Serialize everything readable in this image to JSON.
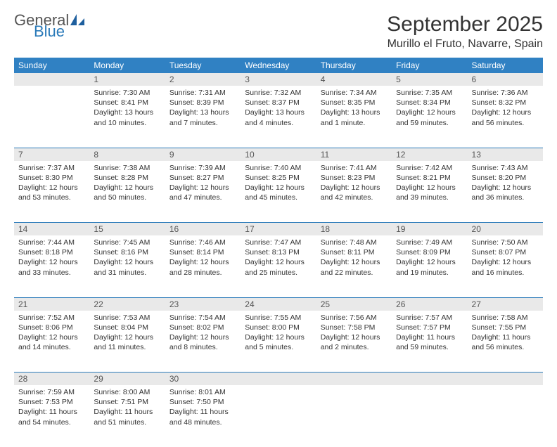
{
  "logo": {
    "general": "General",
    "blue": "Blue"
  },
  "header": {
    "month_title": "September 2025",
    "location": "Murillo el Fruto, Navarre, Spain"
  },
  "colors": {
    "header_blue": "#3081c3",
    "rule_blue": "#2a7ab9",
    "daynum_bg": "#e9e9e9",
    "text": "#333333"
  },
  "day_names": [
    "Sunday",
    "Monday",
    "Tuesday",
    "Wednesday",
    "Thursday",
    "Friday",
    "Saturday"
  ],
  "weeks": [
    [
      {
        "n": "",
        "sr": "",
        "ss": "",
        "dl": ""
      },
      {
        "n": "1",
        "sr": "Sunrise: 7:30 AM",
        "ss": "Sunset: 8:41 PM",
        "dl": "Daylight: 13 hours and 10 minutes."
      },
      {
        "n": "2",
        "sr": "Sunrise: 7:31 AM",
        "ss": "Sunset: 8:39 PM",
        "dl": "Daylight: 13 hours and 7 minutes."
      },
      {
        "n": "3",
        "sr": "Sunrise: 7:32 AM",
        "ss": "Sunset: 8:37 PM",
        "dl": "Daylight: 13 hours and 4 minutes."
      },
      {
        "n": "4",
        "sr": "Sunrise: 7:34 AM",
        "ss": "Sunset: 8:35 PM",
        "dl": "Daylight: 13 hours and 1 minute."
      },
      {
        "n": "5",
        "sr": "Sunrise: 7:35 AM",
        "ss": "Sunset: 8:34 PM",
        "dl": "Daylight: 12 hours and 59 minutes."
      },
      {
        "n": "6",
        "sr": "Sunrise: 7:36 AM",
        "ss": "Sunset: 8:32 PM",
        "dl": "Daylight: 12 hours and 56 minutes."
      }
    ],
    [
      {
        "n": "7",
        "sr": "Sunrise: 7:37 AM",
        "ss": "Sunset: 8:30 PM",
        "dl": "Daylight: 12 hours and 53 minutes."
      },
      {
        "n": "8",
        "sr": "Sunrise: 7:38 AM",
        "ss": "Sunset: 8:28 PM",
        "dl": "Daylight: 12 hours and 50 minutes."
      },
      {
        "n": "9",
        "sr": "Sunrise: 7:39 AM",
        "ss": "Sunset: 8:27 PM",
        "dl": "Daylight: 12 hours and 47 minutes."
      },
      {
        "n": "10",
        "sr": "Sunrise: 7:40 AM",
        "ss": "Sunset: 8:25 PM",
        "dl": "Daylight: 12 hours and 45 minutes."
      },
      {
        "n": "11",
        "sr": "Sunrise: 7:41 AM",
        "ss": "Sunset: 8:23 PM",
        "dl": "Daylight: 12 hours and 42 minutes."
      },
      {
        "n": "12",
        "sr": "Sunrise: 7:42 AM",
        "ss": "Sunset: 8:21 PM",
        "dl": "Daylight: 12 hours and 39 minutes."
      },
      {
        "n": "13",
        "sr": "Sunrise: 7:43 AM",
        "ss": "Sunset: 8:20 PM",
        "dl": "Daylight: 12 hours and 36 minutes."
      }
    ],
    [
      {
        "n": "14",
        "sr": "Sunrise: 7:44 AM",
        "ss": "Sunset: 8:18 PM",
        "dl": "Daylight: 12 hours and 33 minutes."
      },
      {
        "n": "15",
        "sr": "Sunrise: 7:45 AM",
        "ss": "Sunset: 8:16 PM",
        "dl": "Daylight: 12 hours and 31 minutes."
      },
      {
        "n": "16",
        "sr": "Sunrise: 7:46 AM",
        "ss": "Sunset: 8:14 PM",
        "dl": "Daylight: 12 hours and 28 minutes."
      },
      {
        "n": "17",
        "sr": "Sunrise: 7:47 AM",
        "ss": "Sunset: 8:13 PM",
        "dl": "Daylight: 12 hours and 25 minutes."
      },
      {
        "n": "18",
        "sr": "Sunrise: 7:48 AM",
        "ss": "Sunset: 8:11 PM",
        "dl": "Daylight: 12 hours and 22 minutes."
      },
      {
        "n": "19",
        "sr": "Sunrise: 7:49 AM",
        "ss": "Sunset: 8:09 PM",
        "dl": "Daylight: 12 hours and 19 minutes."
      },
      {
        "n": "20",
        "sr": "Sunrise: 7:50 AM",
        "ss": "Sunset: 8:07 PM",
        "dl": "Daylight: 12 hours and 16 minutes."
      }
    ],
    [
      {
        "n": "21",
        "sr": "Sunrise: 7:52 AM",
        "ss": "Sunset: 8:06 PM",
        "dl": "Daylight: 12 hours and 14 minutes."
      },
      {
        "n": "22",
        "sr": "Sunrise: 7:53 AM",
        "ss": "Sunset: 8:04 PM",
        "dl": "Daylight: 12 hours and 11 minutes."
      },
      {
        "n": "23",
        "sr": "Sunrise: 7:54 AM",
        "ss": "Sunset: 8:02 PM",
        "dl": "Daylight: 12 hours and 8 minutes."
      },
      {
        "n": "24",
        "sr": "Sunrise: 7:55 AM",
        "ss": "Sunset: 8:00 PM",
        "dl": "Daylight: 12 hours and 5 minutes."
      },
      {
        "n": "25",
        "sr": "Sunrise: 7:56 AM",
        "ss": "Sunset: 7:58 PM",
        "dl": "Daylight: 12 hours and 2 minutes."
      },
      {
        "n": "26",
        "sr": "Sunrise: 7:57 AM",
        "ss": "Sunset: 7:57 PM",
        "dl": "Daylight: 11 hours and 59 minutes."
      },
      {
        "n": "27",
        "sr": "Sunrise: 7:58 AM",
        "ss": "Sunset: 7:55 PM",
        "dl": "Daylight: 11 hours and 56 minutes."
      }
    ],
    [
      {
        "n": "28",
        "sr": "Sunrise: 7:59 AM",
        "ss": "Sunset: 7:53 PM",
        "dl": "Daylight: 11 hours and 54 minutes."
      },
      {
        "n": "29",
        "sr": "Sunrise: 8:00 AM",
        "ss": "Sunset: 7:51 PM",
        "dl": "Daylight: 11 hours and 51 minutes."
      },
      {
        "n": "30",
        "sr": "Sunrise: 8:01 AM",
        "ss": "Sunset: 7:50 PM",
        "dl": "Daylight: 11 hours and 48 minutes."
      },
      {
        "n": "",
        "sr": "",
        "ss": "",
        "dl": ""
      },
      {
        "n": "",
        "sr": "",
        "ss": "",
        "dl": ""
      },
      {
        "n": "",
        "sr": "",
        "ss": "",
        "dl": ""
      },
      {
        "n": "",
        "sr": "",
        "ss": "",
        "dl": ""
      }
    ]
  ]
}
